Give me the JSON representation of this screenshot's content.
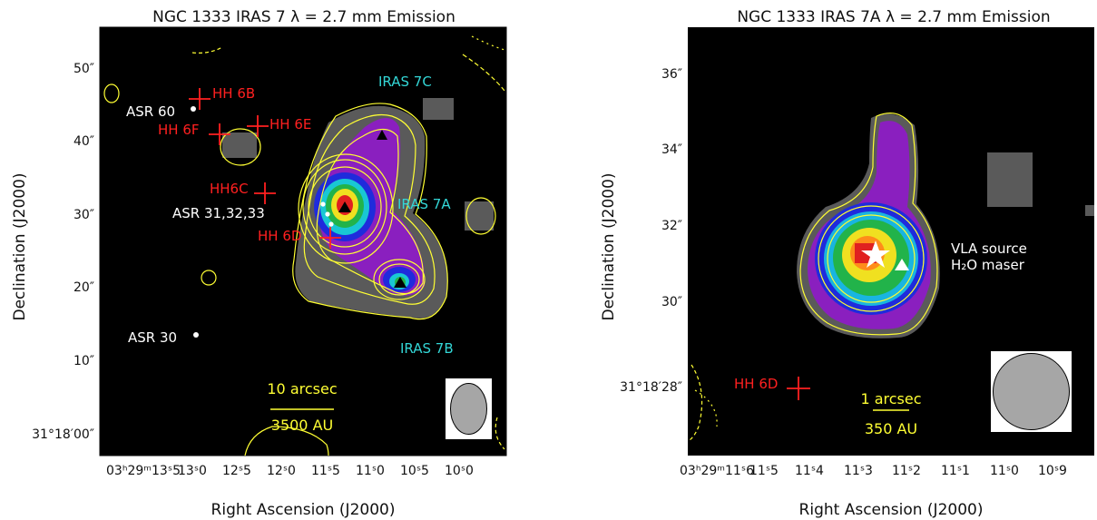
{
  "panels": [
    {
      "title": "NGC 1333 IRAS 7   λ = 2.7 mm Emission",
      "xlabel": "Right Ascension (J2000)",
      "ylabel": "Declination (J2000)",
      "ra_ticks": [
        {
          "label": "03ʰ29ᵐ13ˢ5"
        },
        {
          "label": "13ˢ0"
        },
        {
          "label": "12ˢ5"
        },
        {
          "label": "12ˢ0"
        },
        {
          "label": "11ˢ5"
        },
        {
          "label": "11ˢ0"
        },
        {
          "label": "10ˢ5"
        },
        {
          "label": "10ˢ0"
        }
      ],
      "dec_ticks": [
        {
          "label": "50″"
        },
        {
          "label": "40″"
        },
        {
          "label": "30″"
        },
        {
          "label": "20″"
        },
        {
          "label": "10″"
        },
        {
          "label": "31°18′00″"
        }
      ],
      "labels": {
        "hh6b": "HH 6B",
        "asr60": "ASR 60",
        "hh6f": "HH 6F",
        "hh6e": "HH 6E",
        "hh6c": "HH6C",
        "asr313233": "ASR 31,32,33",
        "hh6d": "HH 6D",
        "asr30": "ASR 30",
        "iras7c": "IRAS 7C",
        "iras7a": "IRAS 7A",
        "iras7b": "IRAS 7B",
        "scale_arcsec": "10 arcsec",
        "scale_au": "3500 AU"
      }
    },
    {
      "title": "NGC 1333 IRAS 7A   λ = 2.7 mm Emission",
      "xlabel": "Right Ascension (J2000)",
      "ylabel": "Declination (J2000)",
      "ra_ticks": [
        {
          "label": "03ʰ29ᵐ11ˢ6"
        },
        {
          "label": "11ˢ5"
        },
        {
          "label": "11ˢ4"
        },
        {
          "label": "11ˢ3"
        },
        {
          "label": "11ˢ2"
        },
        {
          "label": "11ˢ1"
        },
        {
          "label": "11ˢ0"
        },
        {
          "label": "10ˢ9"
        }
      ],
      "dec_ticks": [
        {
          "label": "36″"
        },
        {
          "label": "34″"
        },
        {
          "label": "32″"
        },
        {
          "label": "30″"
        },
        {
          "label": "31°18′28″"
        }
      ],
      "labels": {
        "vla": "VLA source",
        "h2o": "H₂O maser",
        "hh6d": "HH 6D",
        "scale_arcsec": "1 arcsec",
        "scale_au": "350 AU"
      }
    }
  ],
  "colors": {
    "background": "#000000",
    "cyan_label": "#33d6d6",
    "red_marker": "#ff2020",
    "yellow_contour": "#ffff33",
    "white_text": "#ffffff"
  }
}
